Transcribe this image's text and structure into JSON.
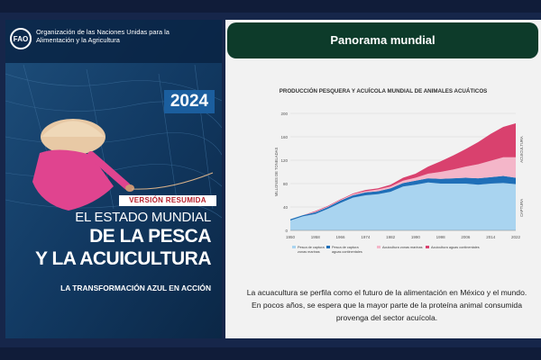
{
  "cover": {
    "org_name": "Organización de las Naciones Unidas para la Alimentación y la Agricultura",
    "logo_text": "FAO",
    "year": "2024",
    "version": "VERSIÓN RESUMIDA",
    "title_line1": "EL ESTADO MUNDIAL",
    "title_line2": "DE LA PESCA",
    "title_line3": "Y LA ACUICULTURA",
    "subtitle": "LA TRANSFORMACIÓN AZUL EN ACCIÓN"
  },
  "slide": {
    "header": "Panorama mundial",
    "caption": "La acuacultura se perfila como el futuro de la alimentación en México y el mundo. En pocos años, se espera que la mayor parte de la proteína animal consumida provenga del sector acuícola."
  },
  "chart_data": {
    "type": "area",
    "title": "PRODUCCIÓN PESQUERA Y ACUÍCOLA MUNDIAL DE ANIMALES ACUÁTICOS",
    "ylabel": "MILLONES DE TONELADAS",
    "ylim": [
      0,
      200
    ],
    "yticks": [
      "200",
      "160",
      "120",
      "80",
      "40",
      "0"
    ],
    "xticks": [
      "1950",
      "1958",
      "1966",
      "1974",
      "1982",
      "1990",
      "1998",
      "2006",
      "2014",
      "2022"
    ],
    "right_labels": [
      "ACUICULTURA",
      "CAPTURA"
    ],
    "x": [
      1950,
      1954,
      1958,
      1962,
      1966,
      1970,
      1974,
      1978,
      1982,
      1986,
      1990,
      1994,
      1998,
      2002,
      2006,
      2010,
      2014,
      2018,
      2022
    ],
    "series": [
      {
        "name": "Pesca de captura zonas marinas",
        "color": "#a9d4f0",
        "values": [
          17,
          24,
          28,
          37,
          47,
          56,
          60,
          62,
          66,
          75,
          78,
          82,
          80,
          80,
          80,
          78,
          80,
          81,
          79
        ]
      },
      {
        "name": "Pesca de captura aguas continentales",
        "color": "#1f6fb8",
        "values": [
          2,
          2,
          3,
          3,
          4,
          4,
          5,
          5,
          6,
          6,
          7,
          7,
          8,
          9,
          10,
          11,
          11,
          12,
          11
        ]
      },
      {
        "name": "Acuicultura zonas marinas",
        "color": "#f4b6c9",
        "values": [
          0,
          0,
          1,
          1,
          1,
          2,
          2,
          3,
          3,
          4,
          5,
          8,
          12,
          15,
          19,
          24,
          28,
          32,
          35
        ]
      },
      {
        "name": "Acuicultura aguas continentales",
        "color": "#d9416e",
        "values": [
          0,
          0,
          1,
          1,
          1,
          1,
          2,
          2,
          3,
          5,
          7,
          12,
          18,
          24,
          30,
          38,
          46,
          52,
          58
        ]
      }
    ]
  }
}
